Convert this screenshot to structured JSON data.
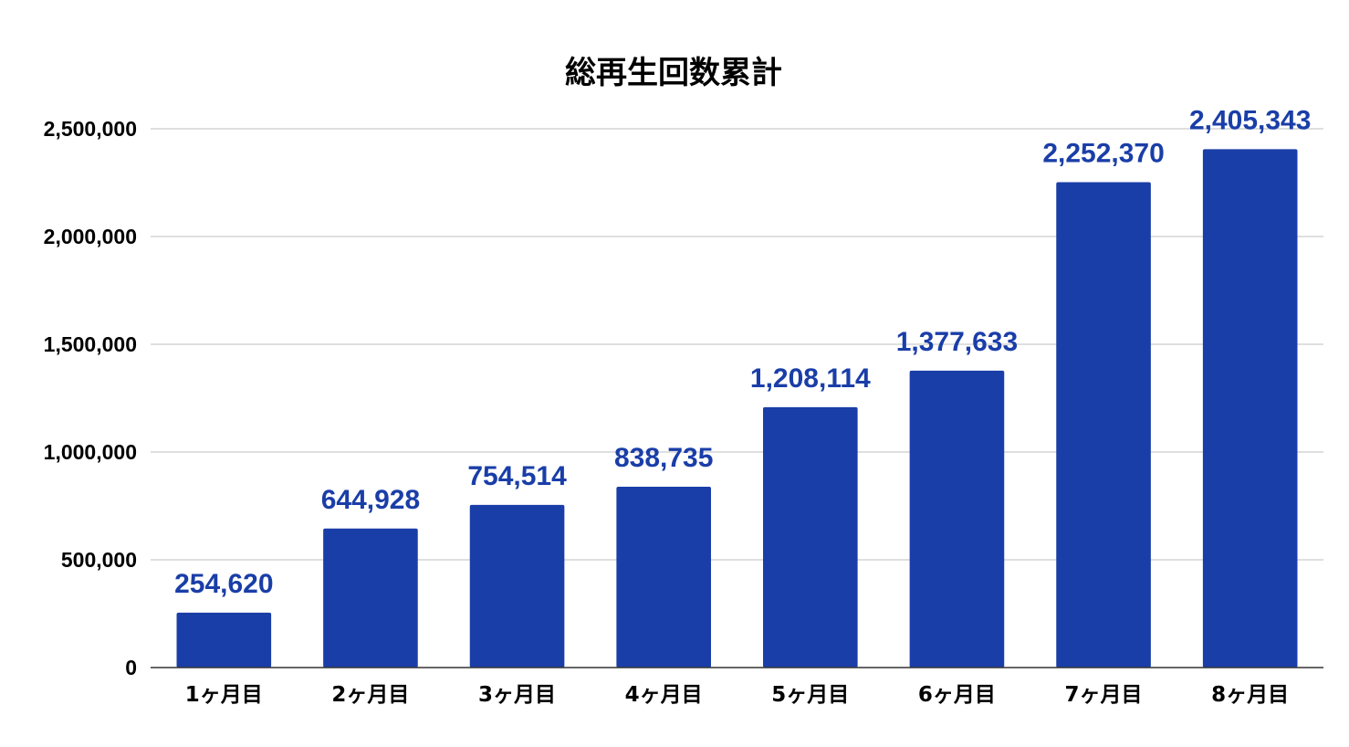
{
  "chart_data": {
    "type": "bar",
    "title": "総再生回数累計",
    "xlabel": "",
    "ylabel": "",
    "categories": [
      "1ヶ月目",
      "2ヶ月目",
      "3ヶ月目",
      "4ヶ月目",
      "5ヶ月目",
      "6ヶ月目",
      "7ヶ月目",
      "8ヶ月目"
    ],
    "values": [
      254620,
      644928,
      754514,
      838735,
      1208114,
      1377633,
      2252370,
      2405343
    ],
    "value_labels": [
      "254,620",
      "644,928",
      "754,514",
      "838,735",
      "1,208,114",
      "1,377,633",
      "2,252,370",
      "2,405,343"
    ],
    "ylim": [
      0,
      2500000
    ],
    "yticks": [
      0,
      500000,
      1000000,
      1500000,
      2000000,
      2500000
    ],
    "ytick_labels": [
      "0",
      "500,000",
      "1,000,000",
      "1,500,000",
      "2,000,000",
      "2,500,000"
    ],
    "grid": true,
    "legend": "none",
    "colors": {
      "bar": "#1a3ea8",
      "data_label": "#1a3ea8",
      "grid": "#cccccc",
      "text": "#000000"
    }
  }
}
